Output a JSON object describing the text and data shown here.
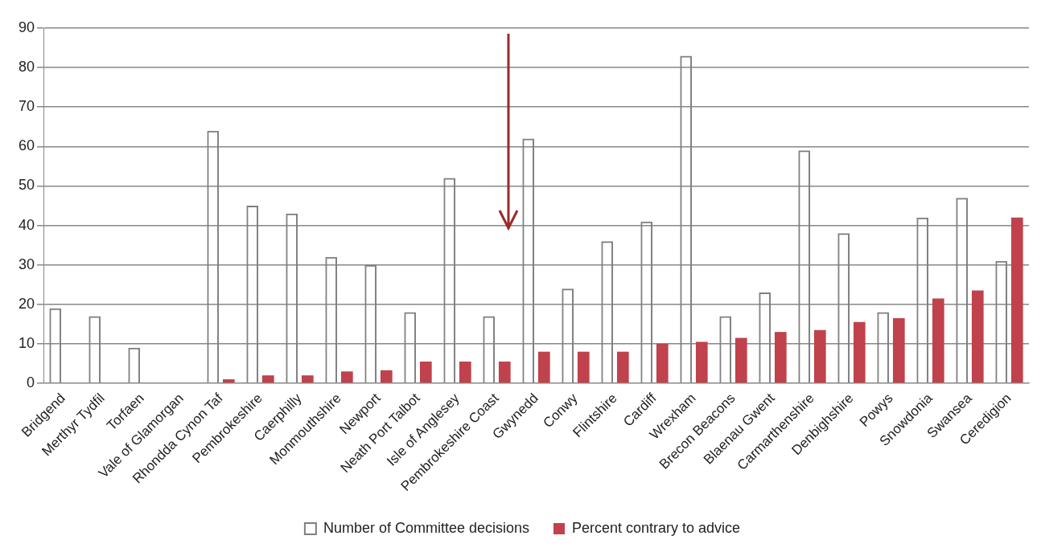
{
  "chart_data": {
    "type": "bar",
    "categories": [
      "Bridgend",
      "Merthyr Tydfil",
      "Torfaen",
      "Vale of Glamorgan",
      "Rhondda Cynon Taf",
      "Pembrokeshire",
      "Caerphilly",
      "Monmouthshire",
      "Newport",
      "Neath Port Talbot",
      "Isle of Anglesey",
      "Pembrokeshire Coast",
      "Gwynedd",
      "Conwy",
      "Flintshire",
      "Cardiff",
      "Wrexham",
      "Brecon Beacons",
      "Blaenau Gwent",
      "Carmarthenshire",
      "Denbighshire",
      "Powys",
      "Snowdonia",
      "Swansea",
      "Ceredigion"
    ],
    "series": [
      {
        "name": "Number of Committee decisions",
        "color": "#7f7f7f",
        "values": [
          19,
          17,
          9,
          0,
          64,
          45,
          43,
          32,
          30,
          18,
          52,
          17,
          62,
          24,
          36,
          41,
          83,
          17,
          23,
          59,
          38,
          18,
          42,
          47,
          31
        ]
      },
      {
        "name": "Percent contrary to advice",
        "color": "#c0424c",
        "values": [
          0,
          0,
          0,
          0,
          1,
          2,
          2,
          3,
          3.3,
          5.5,
          5.5,
          5.5,
          8,
          8,
          8,
          10,
          10.5,
          11.5,
          13,
          13.5,
          15.5,
          16.5,
          21.5,
          23.5,
          42
        ]
      }
    ],
    "ylim": [
      0,
      90
    ],
    "yticks": [
      0,
      10,
      20,
      30,
      40,
      50,
      60,
      70,
      80,
      90
    ],
    "grid": "y",
    "legend": "bottom"
  }
}
